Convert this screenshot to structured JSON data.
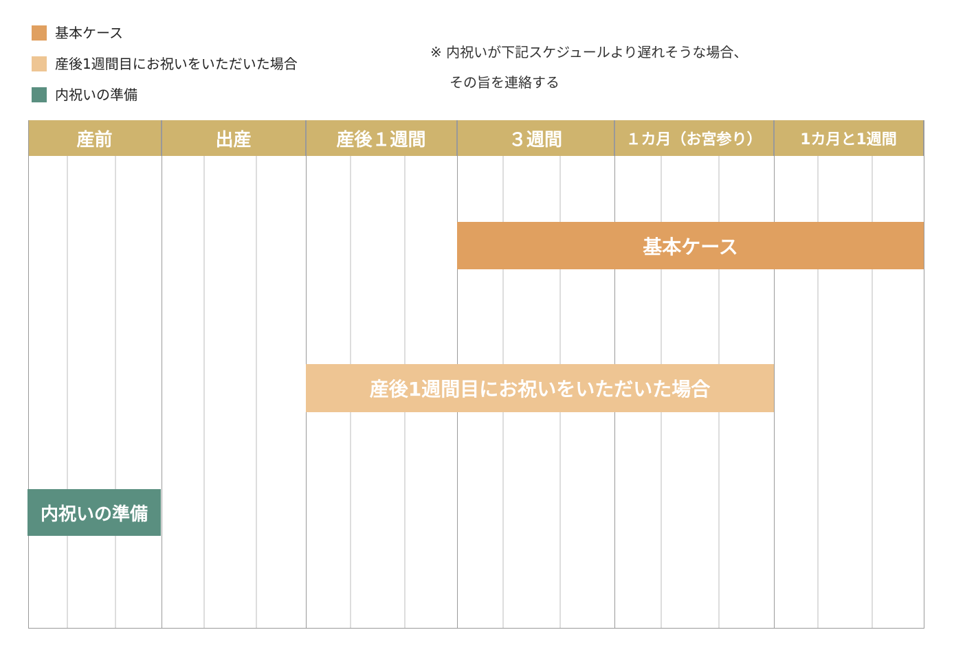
{
  "legend": [
    "基本ケース",
    "産後1週間目にお祝いをいただいた場合",
    "内祝いの準備"
  ],
  "note": [
    "※ 内祝いが下記スケジュールより遅れそうな場合、",
    "その旨を連絡する"
  ],
  "columns": [
    "産前",
    "出産",
    "産後１週間",
    "３週間",
    "１カ月（お宮参り）",
    "1カ月と1週間"
  ],
  "bars": [
    "基本ケース",
    "産後1週間目にお祝いをいただいた場合",
    "内祝いの準備"
  ]
}
